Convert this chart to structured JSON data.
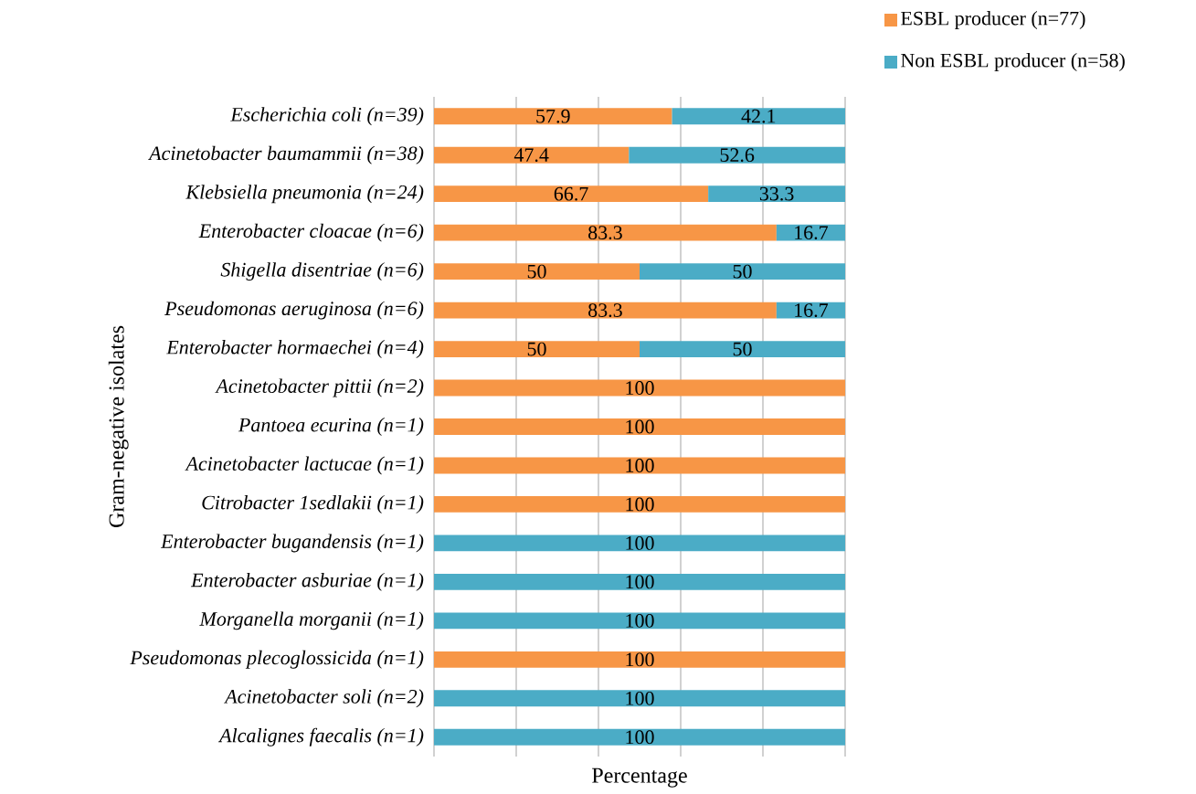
{
  "chart_data": {
    "type": "bar",
    "orientation": "horizontal",
    "stacked": true,
    "xlabel": "Percentage",
    "ylabel": "Gram-negative isolates",
    "categories": [
      "Escherichia coli (n=39)",
      "Acinetobacter baumammii (n=38)",
      "Klebsiella pneumonia (n=24)",
      "Enterobacter cloacae (n=6)",
      "Shigella disentriae (n=6)",
      "Pseudomonas aeruginosa (n=6)",
      "Enterobacter hormaechei (n=4)",
      "Acinetobacter pittii (n=2)",
      "Pantoea ecurina (n=1)",
      "Acinetobacter lactucae (n=1)",
      "Citrobacter 1sedlakii (n=1)",
      "Enterobacter bugandensis (n=1)",
      "Enterobacter asburiae (n=1)",
      "Morganella morganii (n=1)",
      "Pseudomonas plecoglossicida (n=1)",
      "Acinetobacter soli (n=2)",
      "Alcalignes faecalis (n=1)"
    ],
    "series": [
      {
        "name": "ESBL producer (n=77)",
        "color": "#f79646",
        "values": [
          57.9,
          47.4,
          66.7,
          83.3,
          50,
          83.3,
          50,
          100,
          100,
          100,
          100,
          null,
          null,
          null,
          100,
          null,
          null
        ]
      },
      {
        "name": "Non ESBL producer (n=58)",
        "color": "#4bacc6",
        "values": [
          42.1,
          52.6,
          33.3,
          16.7,
          50,
          16.7,
          50,
          null,
          null,
          null,
          null,
          100,
          100,
          100,
          null,
          100,
          100
        ]
      }
    ],
    "xlim": [
      0,
      100
    ],
    "xticks": [
      {
        "value": 0,
        "label": null
      },
      {
        "value": 20,
        "label": null
      },
      {
        "value": 40,
        "label": null
      },
      {
        "value": 60,
        "label": null
      },
      {
        "value": 80,
        "label": null
      },
      {
        "value": 100,
        "label": null
      }
    ],
    "tick_labels": "y",
    "grid": "x",
    "legend": "top right",
    "data_labels": true
  }
}
